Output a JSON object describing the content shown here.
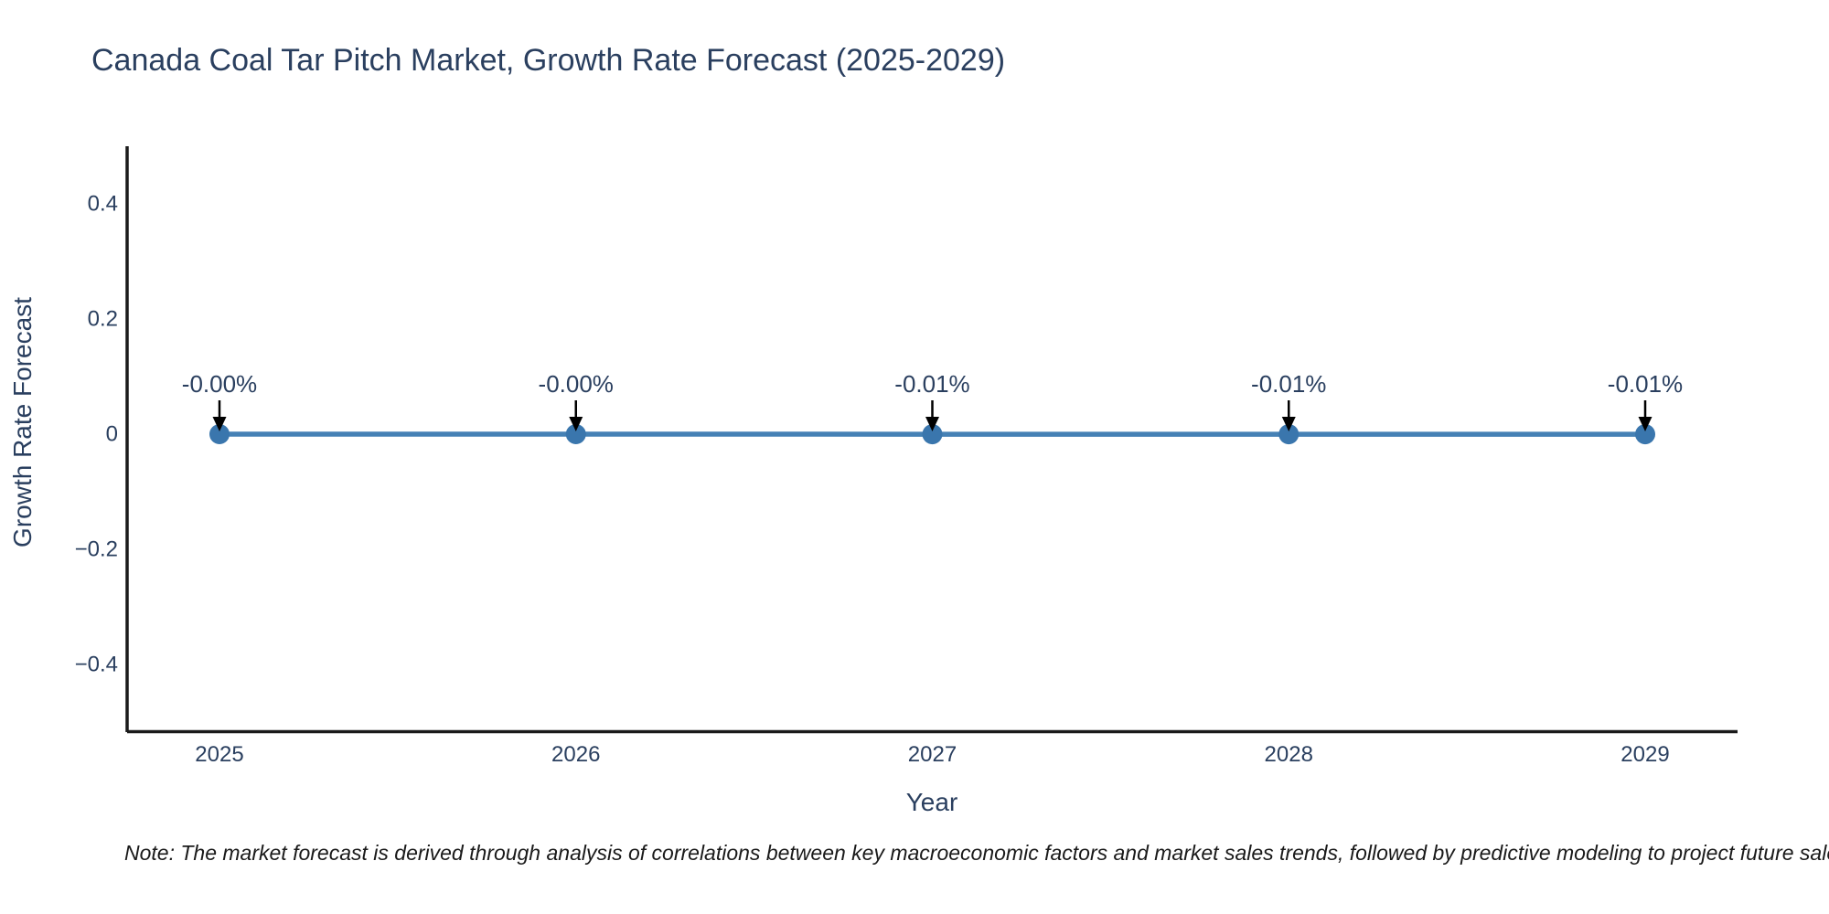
{
  "title": "Canada Coal Tar Pitch Market, Growth Rate Forecast (2025-2029)",
  "note": "Note: The market forecast is derived through analysis of correlations between key macroeconomic factors and market sales trends, followed by predictive modeling to project future sales",
  "chart_data": {
    "type": "line",
    "title": "Canada Coal Tar Pitch Market, Growth Rate Forecast (2025-2029)",
    "xlabel": "Year",
    "ylabel": "Growth Rate Forecast",
    "x": [
      2025,
      2026,
      2027,
      2028,
      2029
    ],
    "x_tick_labels": [
      "2025",
      "2026",
      "2027",
      "2028",
      "2029"
    ],
    "values_percent": [
      -0.0,
      -0.0,
      -0.01,
      -0.01,
      -0.01
    ],
    "point_labels": [
      "-0.00%",
      "-0.00%",
      "-0.01%",
      "-0.01%",
      "-0.01%"
    ],
    "y_ticks": [
      0.4,
      0.2,
      0,
      -0.2,
      -0.4
    ],
    "y_tick_labels": [
      "0.4",
      "0.2",
      "0",
      "−0.2",
      "−0.4"
    ],
    "ylim": [
      -0.52,
      0.52
    ],
    "grid": false,
    "legend": "none",
    "marker": "circle",
    "annotation_arrows": true,
    "colors": {
      "line": "#4581b5",
      "marker": "#3a76ad",
      "axis_line": "#1a1a1a",
      "text": "#2a3f5f",
      "arrow": "#000000",
      "note_text": "#1a1a1a",
      "background": "#ffffff"
    }
  }
}
